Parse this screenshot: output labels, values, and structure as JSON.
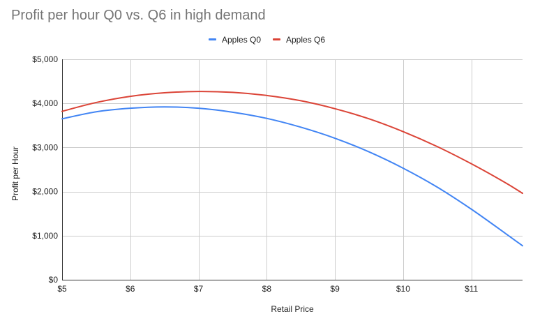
{
  "chart_data": {
    "type": "line",
    "title": "Profit per hour Q0 vs. Q6 in high demand",
    "xlabel": "Retail Price",
    "ylabel": "Profit per Hour",
    "xlim": [
      5,
      11.75
    ],
    "ylim": [
      0,
      5000
    ],
    "x_ticks": [
      5,
      6,
      7,
      8,
      9,
      10,
      11
    ],
    "x_tick_labels": [
      "$5",
      "$6",
      "$7",
      "$8",
      "$9",
      "$10",
      "$11"
    ],
    "y_ticks": [
      0,
      1000,
      2000,
      3000,
      4000,
      5000
    ],
    "y_tick_labels": [
      "$0",
      "$1,000",
      "$2,000",
      "$3,000",
      "$4,000",
      "$5,000"
    ],
    "grid": true,
    "legend_position": "top",
    "x": [
      5,
      5.5,
      6,
      6.5,
      7,
      7.5,
      8,
      8.5,
      9,
      9.5,
      10,
      10.5,
      11,
      11.5,
      11.75
    ],
    "series": [
      {
        "name": "Apples Q0",
        "color": "#4285f4",
        "values": [
          3650,
          3810,
          3890,
          3920,
          3890,
          3800,
          3660,
          3460,
          3210,
          2900,
          2530,
          2100,
          1600,
          1050,
          770
        ]
      },
      {
        "name": "Apples Q6",
        "color": "#db4437",
        "values": [
          3820,
          4020,
          4160,
          4240,
          4270,
          4250,
          4180,
          4060,
          3880,
          3650,
          3360,
          3020,
          2630,
          2200,
          1960
        ]
      }
    ]
  }
}
